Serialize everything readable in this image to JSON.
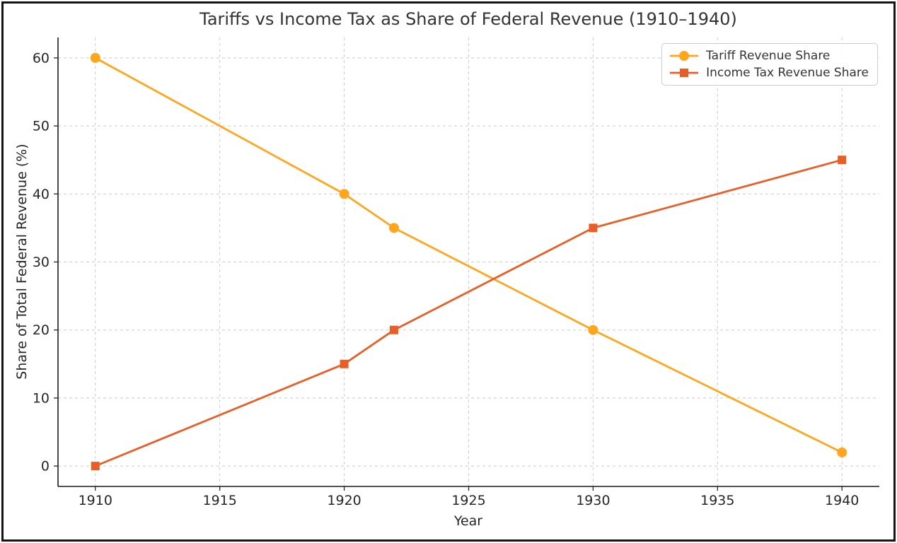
{
  "figure": {
    "background": "#ffffff",
    "border_color": "#141414",
    "text_color": "#333333",
    "grid_color": "#cccccc",
    "spine_color": "#1a1a1a"
  },
  "chart_data": {
    "type": "line",
    "title": "Tariffs vs Income Tax as Share of Federal Revenue (1910–1940)",
    "xlabel": "Year",
    "ylabel": "Share of Total Federal Revenue (%)",
    "x_ticks": [
      1910,
      1915,
      1920,
      1925,
      1930,
      1935,
      1940
    ],
    "y_ticks": [
      0,
      10,
      20,
      30,
      40,
      50,
      60
    ],
    "xlim": [
      1908.5,
      1941.5
    ],
    "ylim": [
      -3,
      63
    ],
    "grid": true,
    "grid_style": "dashed",
    "legend_position": "top-right",
    "series": [
      {
        "name": "Tariff Revenue Share",
        "color": "#FFA51E",
        "marker": "circle",
        "x": [
          1910,
          1920,
          1922,
          1930,
          1940
        ],
        "values": [
          60,
          40,
          35,
          20,
          2
        ]
      },
      {
        "name": "Income Tax Revenue Share",
        "color": "#E85E27",
        "marker": "square",
        "x": [
          1910,
          1920,
          1922,
          1930,
          1940
        ],
        "values": [
          0,
          15,
          20,
          35,
          45
        ]
      }
    ]
  }
}
